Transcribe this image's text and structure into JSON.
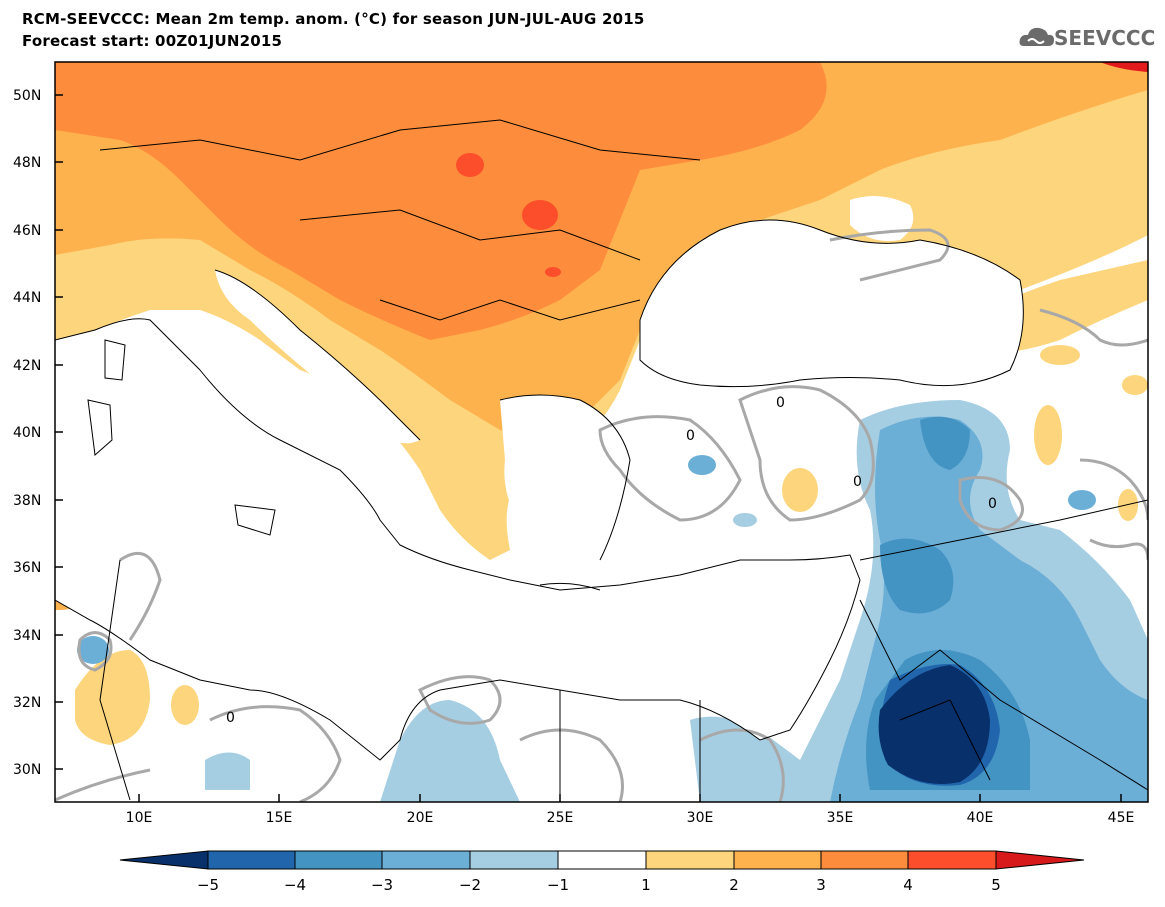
{
  "title": {
    "line1": "RCM-SEEVCCC: Mean 2m temp. anom. (°C) for season JUN-JUL-AUG 2015",
    "line2": "Forecast start: 00Z01JUN2015"
  },
  "logo": {
    "text": "SEEVCCC",
    "icon": "cloud-icon"
  },
  "map": {
    "lat_labels": [
      "50N",
      "48N",
      "46N",
      "44N",
      "42N",
      "40N",
      "38N",
      "36N",
      "34N",
      "32N",
      "30N"
    ],
    "lon_labels": [
      "10E",
      "15E",
      "20E",
      "25E",
      "30E",
      "35E",
      "40E",
      "45E"
    ],
    "contour_label": "0",
    "extent": {
      "lon_min": 7,
      "lon_max": 46,
      "lat_min": 29,
      "lat_max": 51
    }
  },
  "colorbar": {
    "labels": [
      "−5",
      "−4",
      "−3",
      "−2",
      "−1",
      "1",
      "2",
      "3",
      "4",
      "5"
    ],
    "colors": [
      "#08306b",
      "#2166ac",
      "#4393c3",
      "#6baed6",
      "#a6cee3",
      "#ffffff",
      "#fdd57c",
      "#fdb24e",
      "#fd8d3c",
      "#fc4e2a",
      "#d7191c"
    ]
  },
  "colors": {
    "warm1": "#fdd57c",
    "warm2": "#fdb24e",
    "warm3": "#fd8d3c",
    "warm4": "#fc4e2a",
    "warm5": "#e31a1c",
    "cool1": "#a6cee3",
    "cool2": "#6baed6",
    "cool3": "#4393c3",
    "cool4": "#2166ac",
    "cool5": "#08306b",
    "contour": "#a8a8a8",
    "border": "#000000"
  }
}
